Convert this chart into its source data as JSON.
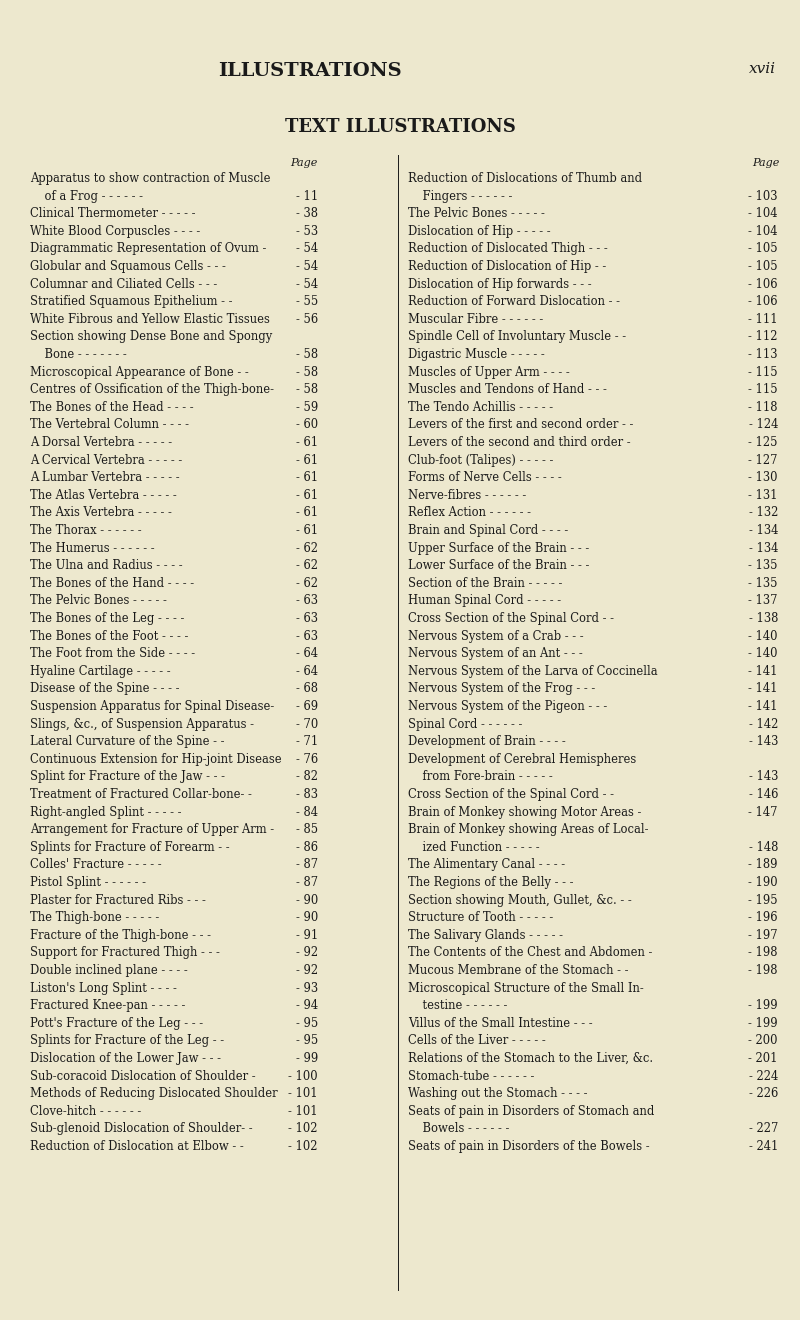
{
  "bg_color": "#ede8ce",
  "text_color": "#1a1a1a",
  "header_top": "ILLUSTRATIONS",
  "header_top_right": "xvii",
  "header_main": "TEXT ILLUSTRATIONS",
  "col1_items": [
    [
      "Apparatus to show contraction of Muscle",
      ""
    ],
    [
      "    of a Frog - - - - - -",
      "11"
    ],
    [
      "Clinical Thermometer - - - - -",
      "38"
    ],
    [
      "White Blood Corpuscles - - - -",
      "53"
    ],
    [
      "Diagrammatic Representation of Ovum -",
      "54"
    ],
    [
      "Globular and Squamous Cells - - -",
      "54"
    ],
    [
      "Columnar and Ciliated Cells - - -",
      "54"
    ],
    [
      "Stratified Squamous Epithelium - -",
      "55"
    ],
    [
      "White Fibrous and Yellow Elastic Tissues",
      "56"
    ],
    [
      "Section showing Dense Bone and Spongy",
      ""
    ],
    [
      "    Bone - - - - - - -",
      "58"
    ],
    [
      "Microscopical Appearance of Bone - -",
      "58"
    ],
    [
      "Centres of Ossification of the Thigh-bone-",
      "58"
    ],
    [
      "The Bones of the Head - - - -",
      "59"
    ],
    [
      "The Vertebral Column - - - -",
      "60"
    ],
    [
      "A Dorsal Vertebra - - - - -",
      "61"
    ],
    [
      "A Cervical Vertebra - - - - -",
      "61"
    ],
    [
      "A Lumbar Vertebra - - - - -",
      "61"
    ],
    [
      "The Atlas Vertebra - - - - -",
      "61"
    ],
    [
      "The Axis Vertebra - - - - -",
      "61"
    ],
    [
      "The Thorax - - - - - -",
      "61"
    ],
    [
      "The Humerus - - - - - -",
      "62"
    ],
    [
      "The Ulna and Radius - - - -",
      "62"
    ],
    [
      "The Bones of the Hand - - - -",
      "62"
    ],
    [
      "The Pelvic Bones - - - - -",
      "63"
    ],
    [
      "The Bones of the Leg - - - -",
      "63"
    ],
    [
      "The Bones of the Foot - - - -",
      "63"
    ],
    [
      "The Foot from the Side - - - -",
      "64"
    ],
    [
      "Hyaline Cartilage - - - - -",
      "64"
    ],
    [
      "Disease of the Spine - - - -",
      "68"
    ],
    [
      "Suspension Apparatus for Spinal Disease-",
      "69"
    ],
    [
      "Slings, &c., of Suspension Apparatus -",
      "70"
    ],
    [
      "Lateral Curvature of the Spine - -",
      "71"
    ],
    [
      "Continuous Extension for Hip-joint Disease",
      "76"
    ],
    [
      "Splint for Fracture of the Jaw - - -",
      "82"
    ],
    [
      "Treatment of Fractured Collar-bone- -",
      "83"
    ],
    [
      "Right-angled Splint - - - - -",
      "84"
    ],
    [
      "Arrangement for Fracture of Upper Arm -",
      "85"
    ],
    [
      "Splints for Fracture of Forearm - -",
      "86"
    ],
    [
      "Colles' Fracture - - - - -",
      "87"
    ],
    [
      "Pistol Splint - - - - - -",
      "87"
    ],
    [
      "Plaster for Fractured Ribs - - -",
      "90"
    ],
    [
      "The Thigh-bone - - - - -",
      "90"
    ],
    [
      "Fracture of the Thigh-bone - - -",
      "91"
    ],
    [
      "Support for Fractured Thigh - - -",
      "92"
    ],
    [
      "Double inclined plane - - - -",
      "92"
    ],
    [
      "Liston's Long Splint - - - -",
      "93"
    ],
    [
      "Fractured Knee-pan - - - - -",
      "94"
    ],
    [
      "Pott's Fracture of the Leg - - -",
      "95"
    ],
    [
      "Splints for Fracture of the Leg - -",
      "95"
    ],
    [
      "Dislocation of the Lower Jaw - - -",
      "99"
    ],
    [
      "Sub-coracoid Dislocation of Shoulder -",
      "100"
    ],
    [
      "Methods of Reducing Dislocated Shoulder",
      "101"
    ],
    [
      "Clove-hitch - - - - - -",
      "101"
    ],
    [
      "Sub-glenoid Dislocation of Shoulder- -",
      "102"
    ],
    [
      "Reduction of Dislocation at Elbow - -",
      "102"
    ]
  ],
  "col2_items": [
    [
      "Reduction of Dislocations of Thumb and",
      ""
    ],
    [
      "    Fingers - - - - - -",
      "103"
    ],
    [
      "The Pelvic Bones - - - - -",
      "104"
    ],
    [
      "Dislocation of Hip - - - - -",
      "104"
    ],
    [
      "Reduction of Dislocated Thigh - - -",
      "105"
    ],
    [
      "Reduction of Dislocation of Hip - -",
      "105"
    ],
    [
      "Dislocation of Hip forwards - - -",
      "106"
    ],
    [
      "Reduction of Forward Dislocation - -",
      "106"
    ],
    [
      "Muscular Fibre - - - - - -",
      "111"
    ],
    [
      "Spindle Cell of Involuntary Muscle - -",
      "112"
    ],
    [
      "Digastric Muscle - - - - -",
      "113"
    ],
    [
      "Muscles of Upper Arm - - - -",
      "115"
    ],
    [
      "Muscles and Tendons of Hand - - -",
      "115"
    ],
    [
      "The Tendo Achillis - - - - -",
      "118"
    ],
    [
      "Levers of the first and second order - -",
      "124"
    ],
    [
      "Levers of the second and third order -",
      "125"
    ],
    [
      "Club-foot (Talipes) - - - - -",
      "127"
    ],
    [
      "Forms of Nerve Cells - - - -",
      "130"
    ],
    [
      "Nerve-fibres - - - - - -",
      "131"
    ],
    [
      "Reflex Action - - - - - -",
      "132"
    ],
    [
      "Brain and Spinal Cord - - - -",
      "134"
    ],
    [
      "Upper Surface of the Brain - - -",
      "134"
    ],
    [
      "Lower Surface of the Brain - - -",
      "135"
    ],
    [
      "Section of the Brain - - - - -",
      "135"
    ],
    [
      "Human Spinal Cord - - - - -",
      "137"
    ],
    [
      "Cross Section of the Spinal Cord - -",
      "138"
    ],
    [
      "Nervous System of a Crab - - -",
      "140"
    ],
    [
      "Nervous System of an Ant - - -",
      "140"
    ],
    [
      "Nervous System of the Larva of Coccinella",
      "141"
    ],
    [
      "Nervous System of the Frog - - -",
      "141"
    ],
    [
      "Nervous System of the Pigeon - - -",
      "141"
    ],
    [
      "Spinal Cord - - - - - -",
      "142"
    ],
    [
      "Development of Brain - - - -",
      "143"
    ],
    [
      "Development of Cerebral Hemispheres",
      ""
    ],
    [
      "    from Fore-brain - - - - -",
      "143"
    ],
    [
      "Cross Section of the Spinal Cord - -",
      "146"
    ],
    [
      "Brain of Monkey showing Motor Areas -",
      "147"
    ],
    [
      "Brain of Monkey showing Areas of Local-",
      ""
    ],
    [
      "    ized Function - - - - -",
      "148"
    ],
    [
      "The Alimentary Canal - - - -",
      "189"
    ],
    [
      "The Regions of the Belly - - -",
      "190"
    ],
    [
      "Section showing Mouth, Gullet, &c. - -",
      "195"
    ],
    [
      "Structure of Tooth - - - - -",
      "196"
    ],
    [
      "The Salivary Glands - - - - -",
      "197"
    ],
    [
      "The Contents of the Chest and Abdomen -",
      "198"
    ],
    [
      "Mucous Membrane of the Stomach - -",
      "198"
    ],
    [
      "Microscopical Structure of the Small In-",
      ""
    ],
    [
      "    testine - - - - - -",
      "199"
    ],
    [
      "Villus of the Small Intestine - - -",
      "199"
    ],
    [
      "Cells of the Liver - - - - -",
      "200"
    ],
    [
      "Relations of the Stomach to the Liver, &c.",
      "201"
    ],
    [
      "Stomach-tube - - - - - -",
      "224"
    ],
    [
      "Washing out the Stomach - - - -",
      "226"
    ],
    [
      "Seats of pain in Disorders of Stomach and",
      ""
    ],
    [
      "    Bowels - - - - - -",
      "227"
    ],
    [
      "Seats of pain in Disorders of the Bowels -",
      "241"
    ]
  ]
}
